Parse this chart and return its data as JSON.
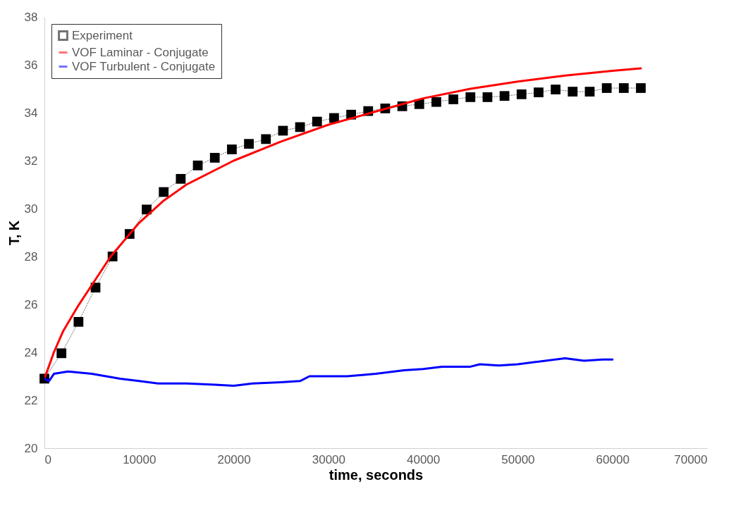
{
  "chart_data": {
    "type": "line",
    "xlabel": "time, seconds",
    "ylabel": "T, K",
    "xlim": [
      0,
      70000
    ],
    "xticks": [
      0,
      10000,
      20000,
      30000,
      40000,
      50000,
      60000,
      70000
    ],
    "ylim": [
      20,
      38
    ],
    "yticks": [
      20,
      22,
      24,
      26,
      28,
      30,
      32,
      34,
      36,
      38
    ],
    "grid": false,
    "legend": "top left",
    "series": [
      {
        "name": "Experiment",
        "color": "#000000",
        "marker": "square",
        "line_style": "dotted",
        "x": [
          0,
          1800,
          3600,
          5400,
          7200,
          9000,
          10800,
          12600,
          14400,
          16200,
          18000,
          19800,
          21600,
          23400,
          25200,
          27000,
          28800,
          30600,
          32400,
          34200,
          36000,
          37800,
          39600,
          41400,
          43200,
          45000,
          46800,
          48600,
          50400,
          52200,
          54000,
          55800,
          57600,
          59400,
          61200,
          63000
        ],
        "values": [
          22.9,
          23.96,
          25.27,
          26.7,
          28.0,
          28.94,
          29.96,
          30.69,
          31.24,
          31.8,
          32.12,
          32.47,
          32.7,
          32.9,
          33.25,
          33.4,
          33.63,
          33.78,
          33.92,
          34.07,
          34.18,
          34.27,
          34.36,
          34.45,
          34.56,
          34.65,
          34.65,
          34.7,
          34.77,
          34.85,
          34.97,
          34.88,
          34.88,
          35.03,
          35.03,
          35.03
        ]
      },
      {
        "name": "VOF Laminar - Conjugate",
        "color": "#ff0000",
        "marker": "none",
        "line_style": "solid",
        "x": [
          0,
          1000,
          2000,
          3500,
          5000,
          7000,
          10000,
          12500,
          15000,
          17500,
          20000,
          25000,
          30000,
          35000,
          40000,
          45000,
          50000,
          55000,
          60000,
          63000
        ],
        "values": [
          22.9,
          24.0,
          24.9,
          25.9,
          26.8,
          28.0,
          29.4,
          30.3,
          31.0,
          31.5,
          32.0,
          32.8,
          33.5,
          34.05,
          34.6,
          35.0,
          35.3,
          35.55,
          35.75,
          35.85
        ]
      },
      {
        "name": "VOF Turbulent - Conjugate",
        "color": "#0000ff",
        "marker": "none",
        "line_style": "solid",
        "x": [
          0,
          500,
          1000,
          2500,
          5000,
          8000,
          10000,
          12000,
          15000,
          18000,
          20000,
          22000,
          25000,
          27000,
          28000,
          30000,
          32000,
          35000,
          38000,
          40000,
          42000,
          45000,
          46000,
          48000,
          50000,
          52000,
          55000,
          57000,
          59000,
          60000
        ],
        "values": [
          22.9,
          22.8,
          23.1,
          23.2,
          23.1,
          22.9,
          22.8,
          22.7,
          22.7,
          22.65,
          22.6,
          22.7,
          22.75,
          22.8,
          23.0,
          23.0,
          23.0,
          23.1,
          23.25,
          23.3,
          23.4,
          23.4,
          23.5,
          23.45,
          23.5,
          23.6,
          23.75,
          23.65,
          23.7,
          23.7
        ]
      }
    ]
  }
}
